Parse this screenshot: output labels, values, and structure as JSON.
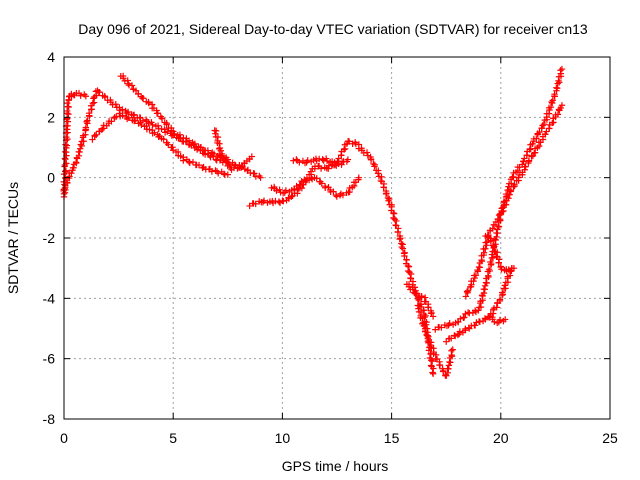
{
  "chart_data": {
    "type": "scatter",
    "title": "Day 096 of 2021, Sidereal Day-to-day VTEC variation (SDTVAR) for receiver cn13",
    "xlabel": "GPS time / hours",
    "ylabel": "SDTVAR / TECUs",
    "xlim": [
      0,
      25
    ],
    "ylim": [
      -8,
      4
    ],
    "xticks": [
      0,
      5,
      10,
      15,
      20,
      25
    ],
    "yticks": [
      -8,
      -6,
      -4,
      -2,
      0,
      2,
      4
    ],
    "x_tick_labels": [
      "0",
      "5",
      "10",
      "15",
      "20",
      "25"
    ],
    "y_tick_labels": [
      "-8",
      "-6",
      "-4",
      "-2",
      "0",
      "2",
      "4"
    ],
    "grid": true,
    "marker": "+",
    "color": "#ff0000",
    "series": [
      {
        "x": [
          0.0,
          0.2,
          0.3,
          0.45,
          0.6,
          0.8,
          1.0
        ],
        "y": [
          -0.6,
          2.7,
          2.75,
          2.7,
          2.8,
          2.75,
          2.7
        ]
      },
      {
        "x": [
          0.0,
          0.2,
          0.4,
          0.6,
          0.8,
          1.0
        ],
        "y": [
          -0.5,
          0.0,
          0.3,
          0.6,
          1.1,
          1.6
        ]
      },
      {
        "x": [
          1.0,
          1.5,
          2.5,
          4.0,
          5.5,
          6.5,
          7.0,
          8.0,
          9.0
        ],
        "y": [
          1.7,
          2.9,
          2.3,
          1.8,
          1.2,
          0.8,
          0.6,
          0.4,
          0.0
        ]
      },
      {
        "x": [
          1.3,
          1.7,
          2.5,
          3.5,
          4.5,
          5.5,
          6.5,
          7.5
        ],
        "y": [
          1.3,
          1.6,
          2.1,
          1.8,
          1.3,
          0.6,
          0.3,
          0.1
        ]
      },
      {
        "x": [
          2.6,
          3.5,
          4.0,
          5.0,
          6.5,
          7.5
        ],
        "y": [
          3.4,
          2.7,
          2.4,
          1.5,
          0.9,
          0.6
        ]
      },
      {
        "x": [
          6.9,
          7.2,
          7.6,
          8.0,
          8.6
        ],
        "y": [
          1.6,
          0.8,
          0.3,
          0.3,
          0.7
        ]
      },
      {
        "x": [
          8.5,
          9.0,
          9.5,
          10.0,
          10.5,
          11.0,
          11.5,
          12.0,
          12.5,
          13.0,
          13.5
        ],
        "y": [
          -0.9,
          -0.8,
          -0.8,
          -0.8,
          -0.6,
          -0.2,
          0.4,
          0.3,
          0.5,
          1.2,
          1.1
        ]
      },
      {
        "x": [
          9.5,
          10.0,
          10.5,
          11.0,
          11.5,
          12.0,
          12.5,
          13.0,
          13.5
        ],
        "y": [
          -0.3,
          -0.5,
          -0.4,
          -0.1,
          0.0,
          -0.3,
          -0.6,
          -0.5,
          0.0
        ]
      },
      {
        "x": [
          10.5,
          11.0,
          11.5,
          12.0,
          12.5,
          13.0
        ],
        "y": [
          0.6,
          0.5,
          0.6,
          0.6,
          0.4,
          0.6
        ]
      },
      {
        "x": [
          13.5,
          14.0,
          14.5,
          15.0,
          15.5,
          16.0,
          16.5,
          16.9
        ],
        "y": [
          1.0,
          0.7,
          0.0,
          -1.0,
          -2.3,
          -3.6,
          -4.5,
          -6.5
        ]
      },
      {
        "x": [
          15.7,
          16.0,
          16.5,
          16.9
        ],
        "y": [
          -3.5,
          -3.8,
          -4.0,
          -4.6
        ]
      },
      {
        "x": [
          16.2,
          16.5,
          17.0,
          17.5,
          17.8
        ],
        "y": [
          -4.2,
          -5.0,
          -5.9,
          -6.6,
          -5.7
        ]
      },
      {
        "x": [
          17.0,
          17.5,
          18.0,
          18.5,
          19.0,
          19.5,
          20.0,
          20.5,
          21.0,
          21.5,
          22.0,
          22.5,
          22.8
        ],
        "y": [
          -5.0,
          -4.9,
          -4.8,
          -4.5,
          -4.4,
          -3.0,
          -1.2,
          0.0,
          0.5,
          1.2,
          1.8,
          2.8,
          3.6
        ]
      },
      {
        "x": [
          17.5,
          18.0,
          18.5,
          19.0,
          19.5,
          20.0,
          20.5
        ],
        "y": [
          -5.4,
          -5.2,
          -5.0,
          -4.8,
          -4.6,
          -4.0,
          -3.0
        ]
      },
      {
        "x": [
          18.4,
          18.6,
          19.0,
          19.5,
          20.0,
          20.5,
          21.0,
          21.5,
          22.0,
          22.5,
          22.8
        ],
        "y": [
          -3.9,
          -3.6,
          -3.0,
          -1.8,
          -1.2,
          -0.4,
          0.2,
          0.8,
          1.4,
          2.0,
          2.4
        ]
      },
      {
        "x": [
          19.3,
          19.5,
          19.8,
          20.0,
          20.3,
          20.6
        ],
        "y": [
          -1.9,
          -2.0,
          -2.5,
          -3.0,
          -3.1,
          -3.0
        ]
      },
      {
        "x": [
          19.5,
          19.8,
          20.2
        ],
        "y": [
          -4.6,
          -4.8,
          -4.7
        ]
      }
    ]
  }
}
